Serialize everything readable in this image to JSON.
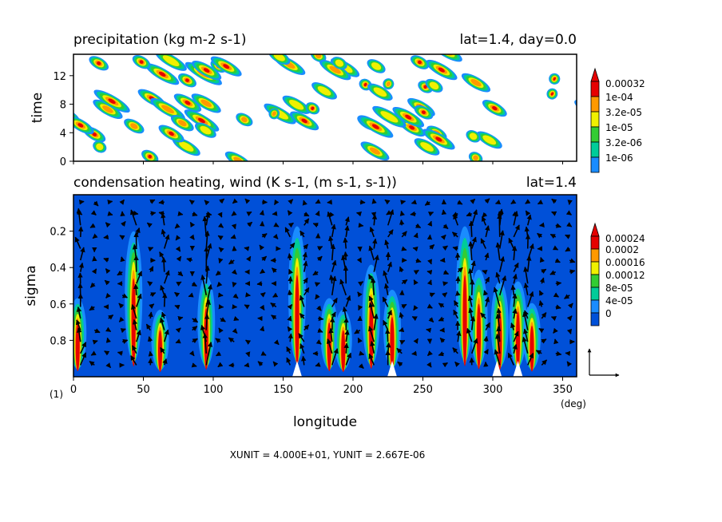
{
  "chart_data": [
    {
      "type": "heatmap",
      "title": "precipitation (kg m-2 s-1)",
      "subtitle": "lat=1.4, day=0.0",
      "ylabel": "time",
      "xlim": [
        0,
        360
      ],
      "ylim": [
        0,
        15
      ],
      "yticks": [
        "0",
        "4",
        "8",
        "12"
      ],
      "legend": {
        "placement": "right",
        "levels": [
          "0.00032",
          "1e-04",
          "3.2e-05",
          "1e-05",
          "3.2e-06",
          "1e-06"
        ],
        "colors": [
          "#e60000",
          "#ff9900",
          "#f0f000",
          "#33cc33",
          "#00cc99",
          "#1a8cff"
        ]
      },
      "pattern": "diagonal streaks of precipitation drifting westward with time, maxima 0.00032"
    },
    {
      "type": "heatmap",
      "title": "condensation heating, wind (K s-1, (m s-1, s-1))",
      "subtitle": "lat=1.4",
      "xlabel": "longitude",
      "ylabel": "sigma",
      "xlim": [
        0,
        360
      ],
      "ylim": [
        1.0,
        0.0
      ],
      "xticks": [
        "0",
        "50",
        "100",
        "150",
        "200",
        "250",
        "300",
        "350"
      ],
      "yticks": [
        "0.2",
        "0.4",
        "0.6",
        "0.8"
      ],
      "x_unit_label": "(deg)",
      "panel_index_label": "(1)",
      "legend": {
        "placement": "right",
        "levels": [
          "0.00024",
          "0.0002",
          "0.00016",
          "0.00012",
          "8e-05",
          "4e-05",
          "0"
        ],
        "colors": [
          "#e60000",
          "#ff9900",
          "#f0f000",
          "#33cc33",
          "#00cc99",
          "#1a8cff",
          "#0050d8"
        ]
      },
      "convective_columns_longitude": [
        3,
        43,
        62,
        95,
        160,
        183,
        193,
        213,
        228,
        280,
        290,
        305,
        318,
        328
      ],
      "vector_reference_text": "XUNIT = 4.000E+01, YUNIT = 2.667E-06"
    }
  ]
}
